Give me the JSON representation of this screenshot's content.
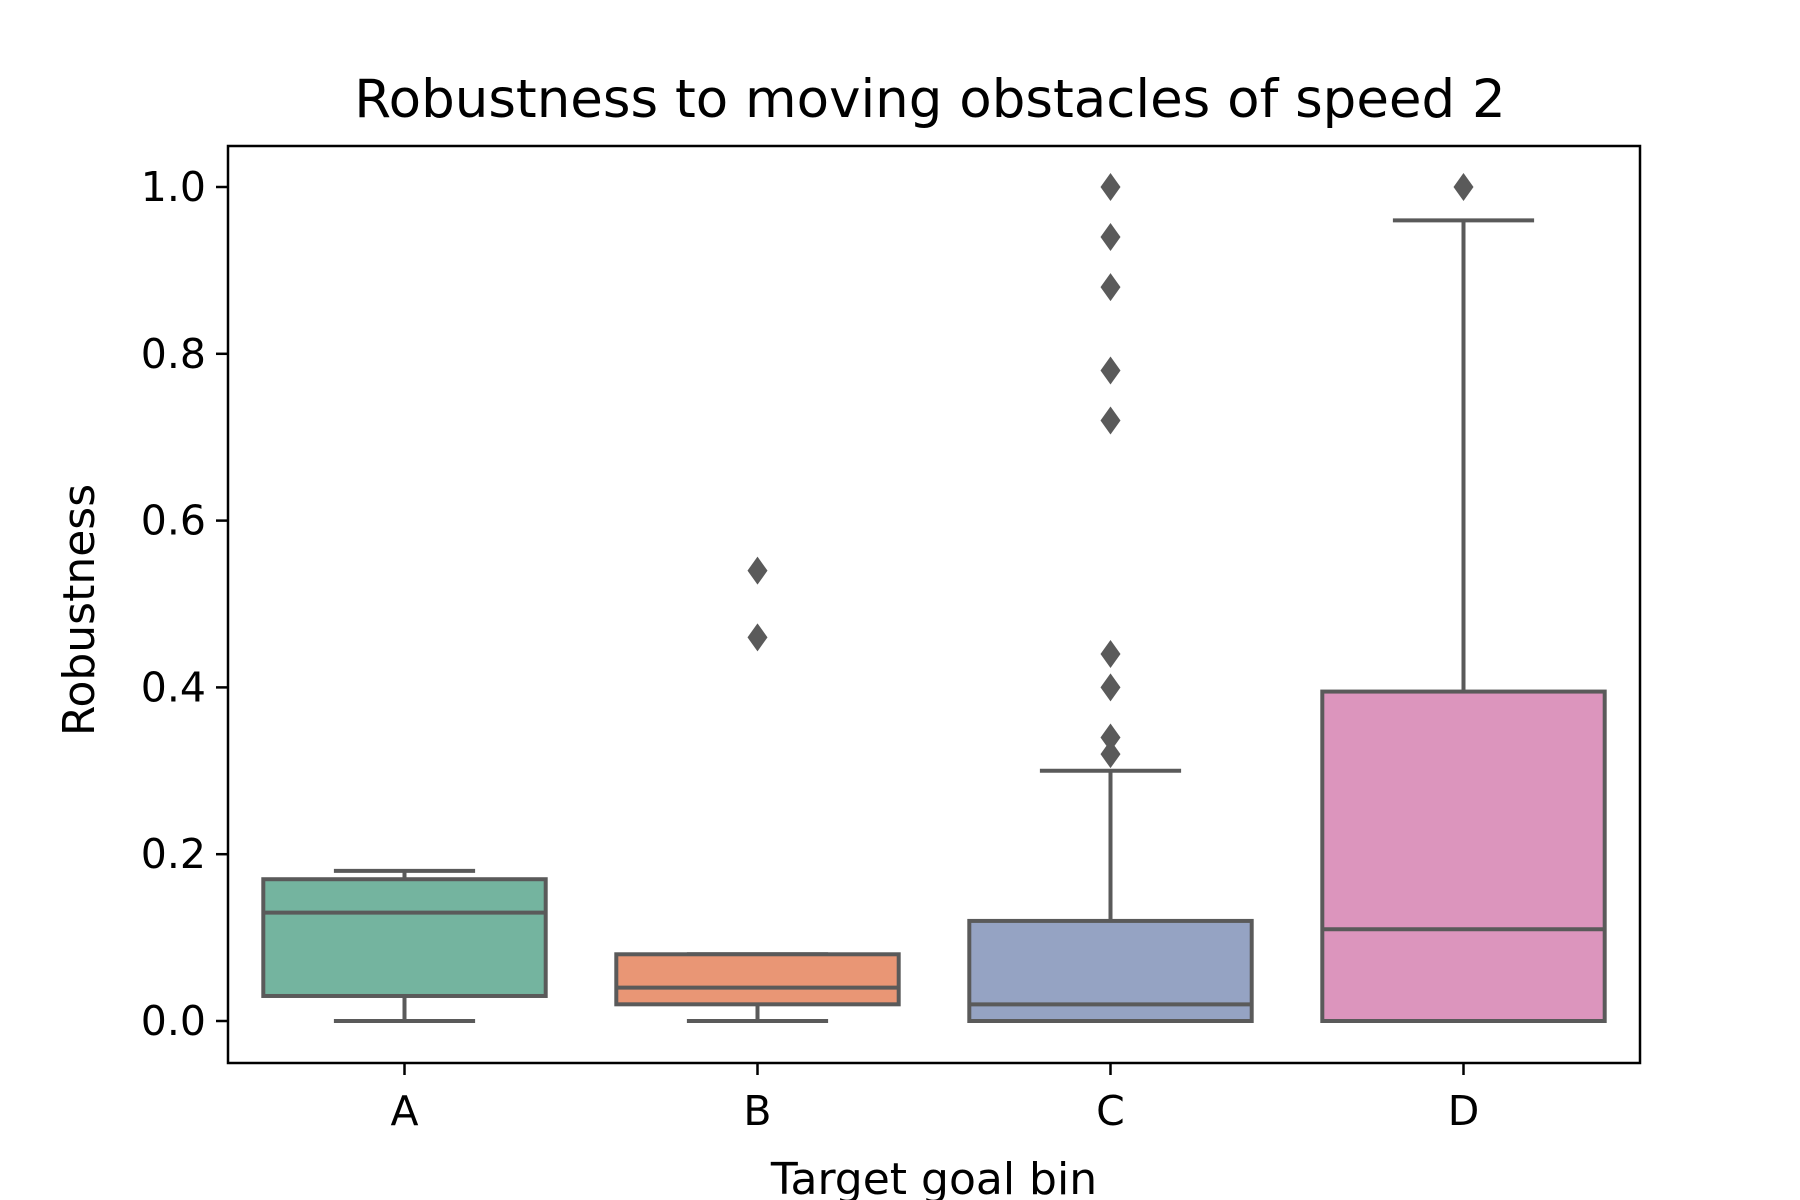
{
  "chart_data": {
    "type": "box",
    "title": "Robustness to moving obstacles of speed 2",
    "xlabel": "Target goal bin",
    "ylabel": "Robustness",
    "ylim": [
      -0.05,
      1.05
    ],
    "yticks": [
      0.0,
      0.2,
      0.4,
      0.6,
      0.8,
      1.0
    ],
    "ytick_labels": [
      "0.0",
      "0.2",
      "0.4",
      "0.6",
      "0.8",
      "1.0"
    ],
    "grid": false,
    "categories": [
      "A",
      "B",
      "C",
      "D"
    ],
    "boxes": [
      {
        "category": "A",
        "whisker_low": 0.0,
        "q1": 0.03,
        "median": 0.13,
        "q3": 0.17,
        "whisker_high": 0.18,
        "outliers": [],
        "color": "#74b49f"
      },
      {
        "category": "B",
        "whisker_low": 0.0,
        "q1": 0.02,
        "median": 0.04,
        "q3": 0.08,
        "whisker_high": 0.08,
        "outliers": [
          0.46,
          0.54
        ],
        "color": "#e99675"
      },
      {
        "category": "C",
        "whisker_low": 0.0,
        "q1": 0.0,
        "median": 0.02,
        "q3": 0.12,
        "whisker_high": 0.3,
        "outliers": [
          0.32,
          0.34,
          0.4,
          0.44,
          0.72,
          0.78,
          0.88,
          0.94,
          1.0
        ],
        "color": "#95a3c3"
      },
      {
        "category": "D",
        "whisker_low": 0.0,
        "q1": 0.0,
        "median": 0.11,
        "q3": 0.395,
        "whisker_high": 0.96,
        "outliers": [
          1.0
        ],
        "color": "#dc95bd"
      }
    ],
    "line_color": "#5a5a5a"
  }
}
